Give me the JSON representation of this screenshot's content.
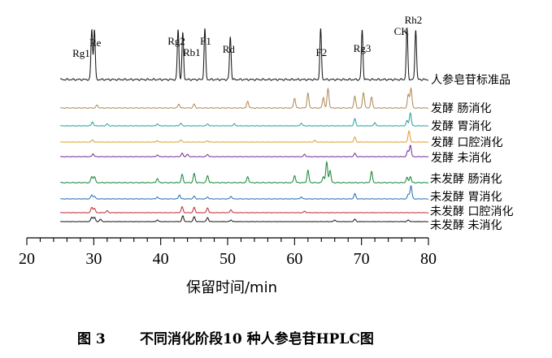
{
  "chart_data": {
    "type": "line",
    "xlabel": "保留时间/min",
    "ylabel": "",
    "xlim": [
      20,
      80
    ],
    "xticks": [
      "20",
      "30",
      "40",
      "50",
      "60",
      "70",
      "80"
    ],
    "xtick_values": [
      20,
      30,
      40,
      50,
      60,
      70,
      80
    ],
    "caption_num": "图 3",
    "caption_text": "不同消化阶段10 种人参皂苷HPLC图",
    "legend": "right-of-traces",
    "grid": false,
    "x_range": [
      25,
      80
    ],
    "series": [
      {
        "name": "人参皂苷标准品",
        "color": "#1a1a1a",
        "peaks": [
          [
            29.7,
            1.0
          ],
          [
            30.1,
            1.0
          ],
          [
            42.6,
            1.0
          ],
          [
            43.3,
            0.92
          ],
          [
            46.6,
            1.0
          ],
          [
            50.4,
            0.85
          ],
          [
            63.9,
            1.0
          ],
          [
            70.1,
            0.98
          ],
          [
            76.8,
            1.0
          ],
          [
            78.1,
            1.0
          ]
        ],
        "peak_labels": [
          {
            "label": "Rg1",
            "x": 29.7
          },
          {
            "label": "Re",
            "x": 30.1
          },
          {
            "label": "Rg2",
            "x": 42.6
          },
          {
            "label": "Rb1",
            "x": 43.3
          },
          {
            "label": "F1",
            "x": 46.6
          },
          {
            "label": "Rd",
            "x": 50.4
          },
          {
            "label": "F2",
            "x": 63.9
          },
          {
            "label": "Rg3",
            "x": 70.1
          },
          {
            "label": "CK",
            "x": 76.8
          },
          {
            "label": "Rh2",
            "x": 78.1
          }
        ]
      },
      {
        "name": "发酵 肠消化",
        "color": "#b38a5a",
        "peaks": [
          [
            30.5,
            0.15
          ],
          [
            42.7,
            0.2
          ],
          [
            45.0,
            0.2
          ],
          [
            53.0,
            0.35
          ],
          [
            60.0,
            0.5
          ],
          [
            62.0,
            0.75
          ],
          [
            64.3,
            0.55
          ],
          [
            65.0,
            1.0
          ],
          [
            69.0,
            0.6
          ],
          [
            70.3,
            0.8
          ],
          [
            71.5,
            0.55
          ],
          [
            77.0,
            0.7
          ],
          [
            77.4,
            1.0
          ]
        ]
      },
      {
        "name": "发酵 胃消化",
        "color": "#2aa3a0",
        "peaks": [
          [
            29.8,
            0.3
          ],
          [
            32.0,
            0.15
          ],
          [
            39.5,
            0.15
          ],
          [
            43.0,
            0.2
          ],
          [
            47.0,
            0.15
          ],
          [
            51.0,
            0.15
          ],
          [
            61.0,
            0.2
          ],
          [
            69.0,
            0.55
          ],
          [
            72.0,
            0.25
          ],
          [
            76.8,
            0.4
          ],
          [
            77.3,
            1.0
          ]
        ]
      },
      {
        "name": "发酵 口腔消化",
        "color": "#e0a030",
        "peaks": [
          [
            29.8,
            0.2
          ],
          [
            39.5,
            0.12
          ],
          [
            43.0,
            0.2
          ],
          [
            47.0,
            0.12
          ],
          [
            63.0,
            0.15
          ],
          [
            69.0,
            0.45
          ],
          [
            77.1,
            1.0
          ]
        ]
      },
      {
        "name": "发酵 未消化",
        "color": "#7a2e9a",
        "peaks": [
          [
            29.9,
            0.25
          ],
          [
            39.5,
            0.15
          ],
          [
            43.2,
            0.3
          ],
          [
            44.0,
            0.2
          ],
          [
            47.0,
            0.2
          ],
          [
            61.5,
            0.2
          ],
          [
            69.0,
            0.3
          ],
          [
            76.9,
            0.5
          ],
          [
            77.3,
            1.0
          ]
        ]
      },
      {
        "name": "未发酵 肠消化",
        "color": "#1a8a3a",
        "peaks": [
          [
            29.7,
            0.3
          ],
          [
            30.1,
            0.3
          ],
          [
            39.5,
            0.2
          ],
          [
            43.2,
            0.4
          ],
          [
            45.0,
            0.45
          ],
          [
            47.0,
            0.35
          ],
          [
            53.0,
            0.3
          ],
          [
            60.0,
            0.35
          ],
          [
            62.0,
            0.6
          ],
          [
            64.3,
            0.3
          ],
          [
            64.8,
            1.0
          ],
          [
            65.3,
            0.6
          ],
          [
            71.5,
            0.55
          ],
          [
            76.8,
            0.25
          ],
          [
            77.3,
            0.3
          ]
        ]
      },
      {
        "name": "未发酵 胃消化",
        "color": "#2a6fb5",
        "peaks": [
          [
            29.7,
            0.3
          ],
          [
            30.1,
            0.2
          ],
          [
            39.5,
            0.15
          ],
          [
            42.8,
            0.3
          ],
          [
            45.0,
            0.2
          ],
          [
            47.0,
            0.15
          ],
          [
            50.5,
            0.2
          ],
          [
            61.0,
            0.15
          ],
          [
            69.0,
            0.4
          ],
          [
            77.0,
            0.35
          ],
          [
            77.4,
            1.0
          ]
        ]
      },
      {
        "name": "未发酵 口腔消化",
        "color": "#c0303a",
        "peaks": [
          [
            29.7,
            0.55
          ],
          [
            30.1,
            0.45
          ],
          [
            32.0,
            0.2
          ],
          [
            43.2,
            0.6
          ],
          [
            45.0,
            0.55
          ],
          [
            47.0,
            0.5
          ],
          [
            50.5,
            0.3
          ],
          [
            61.5,
            0.15
          ]
        ]
      },
      {
        "name": "未发酵 未消化",
        "color": "#1a1a1a",
        "peaks": [
          [
            29.7,
            0.55
          ],
          [
            30.1,
            0.55
          ],
          [
            31.0,
            0.3
          ],
          [
            39.5,
            0.2
          ],
          [
            43.3,
            0.7
          ],
          [
            45.0,
            0.6
          ],
          [
            47.0,
            0.5
          ],
          [
            50.5,
            0.2
          ],
          [
            66.0,
            0.2
          ],
          [
            69.0,
            0.3
          ],
          [
            77.0,
            0.2
          ]
        ]
      }
    ]
  }
}
